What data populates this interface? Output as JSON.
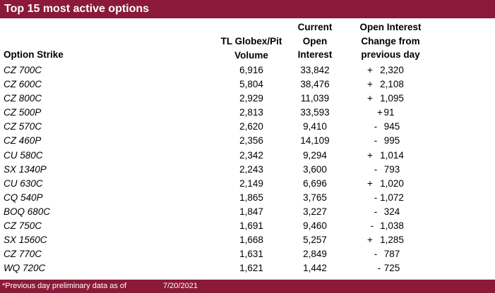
{
  "title": "Top 15 most active options",
  "headers": {
    "strike": "Option Strike",
    "volume": [
      "TL Globex/Pit",
      "Volume"
    ],
    "open_interest": [
      "Current",
      "Open",
      "Interest"
    ],
    "change": [
      "Open Interest",
      "Change from",
      "previous day"
    ]
  },
  "rows": [
    {
      "strike": "CZ 700C",
      "volume": "6,916",
      "oi": "33,842",
      "sign": "+",
      "change": "2,320"
    },
    {
      "strike": "CZ 600C",
      "volume": "5,804",
      "oi": "38,476",
      "sign": "+",
      "change": "2,108"
    },
    {
      "strike": "CZ 800C",
      "volume": "2,929",
      "oi": "11,039",
      "sign": "+",
      "change": "1,095"
    },
    {
      "strike": "CZ 500P",
      "volume": "2,813",
      "oi": "33,593",
      "sign": "+",
      "change": "91"
    },
    {
      "strike": "CZ 570C",
      "volume": "2,620",
      "oi": "9,410",
      "sign": "-",
      "change": "945"
    },
    {
      "strike": "CZ 460P",
      "volume": "2,356",
      "oi": "14,109",
      "sign": "-",
      "change": "995"
    },
    {
      "strike": "CU 580C",
      "volume": "2,342",
      "oi": "9,294",
      "sign": "+",
      "change": "1,014"
    },
    {
      "strike": "SX 1340P",
      "volume": "2,243",
      "oi": "3,600",
      "sign": "-",
      "change": "793"
    },
    {
      "strike": "CU 630C",
      "volume": "2,149",
      "oi": "6,696",
      "sign": "+",
      "change": "1,020"
    },
    {
      "strike": "CQ 540P",
      "volume": "1,865",
      "oi": "3,765",
      "sign": "-",
      "change": "1,072"
    },
    {
      "strike": "BOQ 680C",
      "volume": "1,847",
      "oi": "3,227",
      "sign": "-",
      "change": "324"
    },
    {
      "strike": "CZ 750C",
      "volume": "1,691",
      "oi": "9,460",
      "sign": "-",
      "change": "1,038"
    },
    {
      "strike": "SX 1560C",
      "volume": "1,668",
      "oi": "5,257",
      "sign": "+",
      "change": "1,285"
    },
    {
      "strike": "CZ 770C",
      "volume": "1,631",
      "oi": "2,849",
      "sign": "-",
      "change": "787"
    },
    {
      "strike": "WQ 720C",
      "volume": "1,621",
      "oi": "1,442",
      "sign": "-",
      "change": "725"
    }
  ],
  "footer": {
    "note": "*Previous day preliminary data as of",
    "date": "7/20/2021"
  },
  "colors": {
    "bar": "#8b1a3a"
  }
}
